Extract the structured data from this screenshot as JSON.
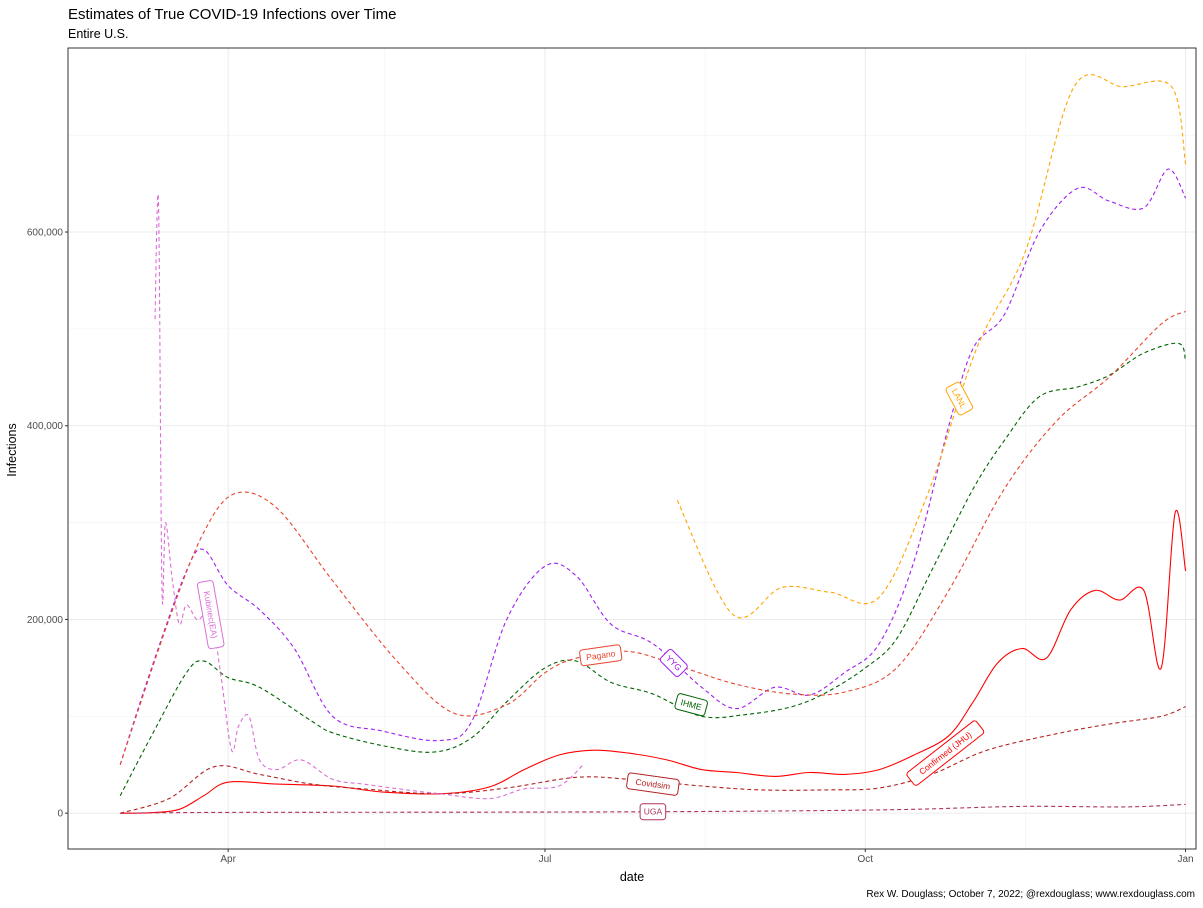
{
  "chart_data": {
    "type": "line",
    "title": "Estimates of True COVID-19 Infections over Time",
    "subtitle": "Entire U.S.",
    "xlabel": "date",
    "ylabel": "Infections",
    "caption": "Rex W. Douglass; October 7, 2022; @rexdouglass; www.rexdouglass.com",
    "x_range": [
      "2020-02-15",
      "2021-01-04"
    ],
    "ylim": [
      -37000,
      790000
    ],
    "x_ticks": [
      {
        "date": "2020-04-01",
        "label": "Apr"
      },
      {
        "date": "2020-07-01",
        "label": "Jul"
      },
      {
        "date": "2020-10-01",
        "label": "Oct"
      },
      {
        "date": "2021-01-01",
        "label": "Jan"
      }
    ],
    "y_ticks": [
      {
        "value": 0,
        "label": "0"
      },
      {
        "value": 200000,
        "label": "200,000"
      },
      {
        "value": 400000,
        "label": "400,000"
      },
      {
        "value": 600000,
        "label": "600,000"
      }
    ],
    "grid": true,
    "legend": "none (labels placed on lines)",
    "series": [
      {
        "name": "IHME",
        "color": "#006400",
        "dash": "dashed",
        "dates": [
          "2020-03-01",
          "2020-03-10",
          "2020-03-20",
          "2020-03-25",
          "2020-04-01",
          "2020-04-10",
          "2020-04-25",
          "2020-05-01",
          "2020-05-15",
          "2020-05-30",
          "2020-06-10",
          "2020-06-20",
          "2020-07-01",
          "2020-07-10",
          "2020-07-20",
          "2020-08-01",
          "2020-08-15",
          "2020-08-28",
          "2020-09-10",
          "2020-09-20",
          "2020-10-01",
          "2020-10-10",
          "2020-10-20",
          "2020-11-01",
          "2020-11-10",
          "2020-11-20",
          "2020-12-01",
          "2020-12-10",
          "2020-12-20",
          "2020-12-30",
          "2021-01-01"
        ],
        "values": [
          18000,
          80000,
          145000,
          157000,
          140000,
          130000,
          95000,
          83000,
          70000,
          63000,
          78000,
          115000,
          150000,
          157000,
          135000,
          123000,
          100000,
          102000,
          110000,
          125000,
          150000,
          180000,
          250000,
          335000,
          385000,
          430000,
          440000,
          452000,
          475000,
          485000,
          467000
        ]
      },
      {
        "name": "YYG",
        "color": "#a020f0",
        "dash": "dashed",
        "dates": [
          "2020-03-01",
          "2020-03-10",
          "2020-03-20",
          "2020-03-25",
          "2020-04-01",
          "2020-04-10",
          "2020-04-20",
          "2020-05-01",
          "2020-05-15",
          "2020-06-01",
          "2020-06-10",
          "2020-06-20",
          "2020-07-01",
          "2020-07-10",
          "2020-07-20",
          "2020-08-01",
          "2020-08-15",
          "2020-08-25",
          "2020-09-05",
          "2020-09-15",
          "2020-09-25",
          "2020-10-05",
          "2020-10-15",
          "2020-10-25",
          "2020-11-01",
          "2020-11-10",
          "2020-11-20",
          "2020-12-01",
          "2020-12-10",
          "2020-12-20",
          "2020-12-27",
          "2021-01-01"
        ],
        "values": [
          50000,
          150000,
          250000,
          272000,
          235000,
          210000,
          170000,
          100000,
          85000,
          75000,
          95000,
          200000,
          255000,
          245000,
          195000,
          175000,
          130000,
          108000,
          130000,
          122000,
          145000,
          175000,
          260000,
          400000,
          480000,
          515000,
          600000,
          645000,
          632000,
          625000,
          665000,
          635000
        ]
      },
      {
        "name": "LANL",
        "color": "#ffa500",
        "dash": "dashed",
        "dates": [
          "2020-08-08",
          "2020-08-24",
          "2020-09-07",
          "2020-09-21",
          "2020-10-05",
          "2020-10-19",
          "2020-11-02",
          "2020-11-16",
          "2020-11-30",
          "2020-12-14",
          "2020-12-28",
          "2021-01-01"
        ],
        "values": [
          323000,
          205000,
          233000,
          228000,
          223000,
          330000,
          480000,
          580000,
          750000,
          750000,
          750000,
          670000
        ]
      },
      {
        "name": "Pagano",
        "color": "#e8442d",
        "dash": "dashed",
        "dates": [
          "2020-03-01",
          "2020-03-15",
          "2020-03-25",
          "2020-04-03",
          "2020-04-15",
          "2020-05-01",
          "2020-05-20",
          "2020-06-05",
          "2020-06-20",
          "2020-07-01",
          "2020-07-10",
          "2020-07-25",
          "2020-08-10",
          "2020-08-25",
          "2020-09-10",
          "2020-09-25",
          "2020-10-10",
          "2020-10-25",
          "2020-11-10",
          "2020-11-25",
          "2020-12-10",
          "2020-12-25",
          "2021-01-01"
        ],
        "values": [
          50000,
          200000,
          290000,
          330000,
          315000,
          240000,
          155000,
          103000,
          112000,
          145000,
          160000,
          167000,
          150000,
          133000,
          123000,
          125000,
          150000,
          230000,
          335000,
          405000,
          450000,
          505000,
          518000
        ]
      },
      {
        "name": "Confirmed (JHU)",
        "color": "#ff0000",
        "dash": "solid",
        "dates": [
          "2020-03-01",
          "2020-03-10",
          "2020-03-18",
          "2020-03-25",
          "2020-04-01",
          "2020-04-15",
          "2020-05-01",
          "2020-05-15",
          "2020-06-01",
          "2020-06-15",
          "2020-06-25",
          "2020-07-05",
          "2020-07-15",
          "2020-07-25",
          "2020-08-05",
          "2020-08-15",
          "2020-08-25",
          "2020-09-05",
          "2020-09-15",
          "2020-09-25",
          "2020-10-05",
          "2020-10-15",
          "2020-10-25",
          "2020-11-01",
          "2020-11-08",
          "2020-11-15",
          "2020-11-22",
          "2020-11-29",
          "2020-12-06",
          "2020-12-13",
          "2020-12-20",
          "2020-12-25",
          "2020-12-29",
          "2021-01-01"
        ],
        "values": [
          0,
          500,
          4000,
          18000,
          32000,
          30000,
          28000,
          22000,
          20000,
          27000,
          45000,
          60000,
          65000,
          62000,
          55000,
          45000,
          42000,
          38000,
          42000,
          40000,
          45000,
          60000,
          80000,
          115000,
          155000,
          170000,
          160000,
          210000,
          230000,
          220000,
          230000,
          150000,
          310000,
          250000
        ]
      },
      {
        "name": "Covidsim",
        "color": "#b22222",
        "dash": "dashed",
        "dates": [
          "2020-03-01",
          "2020-03-15",
          "2020-03-28",
          "2020-04-10",
          "2020-04-25",
          "2020-05-10",
          "2020-06-01",
          "2020-06-20",
          "2020-07-10",
          "2020-07-25",
          "2020-08-15",
          "2020-09-01",
          "2020-09-20",
          "2020-10-05",
          "2020-10-20",
          "2020-11-05",
          "2020-11-25",
          "2020-12-10",
          "2020-12-25",
          "2021-01-01"
        ],
        "values": [
          0,
          15000,
          48000,
          40000,
          30000,
          25000,
          20000,
          26000,
          37000,
          35000,
          28000,
          24000,
          24000,
          26000,
          40000,
          65000,
          82000,
          92000,
          100000,
          110000
        ]
      },
      {
        "name": "UGA",
        "color": "#b03060",
        "dash": "dashed",
        "dates": [
          "2020-03-01",
          "2020-04-01",
          "2020-06-01",
          "2020-08-01",
          "2020-09-15",
          "2020-10-15",
          "2020-11-15",
          "2020-12-15",
          "2021-01-01"
        ],
        "values": [
          0,
          800,
          1000,
          1500,
          2500,
          4000,
          7000,
          6500,
          9000
        ]
      },
      {
        "name": "Kubinec(EA)",
        "color": "#da70d6",
        "dash": "dashed",
        "dates": [
          "2020-03-11",
          "2020-03-12",
          "2020-03-13",
          "2020-03-14",
          "2020-03-16",
          "2020-03-18",
          "2020-03-20",
          "2020-03-23",
          "2020-03-25",
          "2020-03-27",
          "2020-03-30",
          "2020-04-02",
          "2020-04-04",
          "2020-04-07",
          "2020-04-10",
          "2020-04-15",
          "2020-04-22",
          "2020-05-01",
          "2020-05-10",
          "2020-05-20",
          "2020-06-01",
          "2020-06-15",
          "2020-06-25",
          "2020-07-05",
          "2020-07-12"
        ],
        "values": [
          510000,
          630000,
          230000,
          300000,
          240000,
          195000,
          215000,
          200000,
          205000,
          210000,
          140000,
          65000,
          90000,
          100000,
          55000,
          45000,
          55000,
          35000,
          30000,
          25000,
          20000,
          15000,
          25000,
          28000,
          50000
        ]
      }
    ],
    "series_labels": [
      {
        "text": "Kubinec(EA)",
        "series": "Kubinec(EA)"
      },
      {
        "text": "Pagano",
        "series": "Pagano"
      },
      {
        "text": "YYG",
        "series": "YYG"
      },
      {
        "text": "IHME",
        "series": "IHME"
      },
      {
        "text": "Covidsim",
        "series": "Covidsim"
      },
      {
        "text": "UGA",
        "series": "UGA"
      },
      {
        "text": "Confirmed (JHU)",
        "series": "Confirmed (JHU)"
      },
      {
        "text": "LANL",
        "series": "LANL"
      }
    ]
  }
}
